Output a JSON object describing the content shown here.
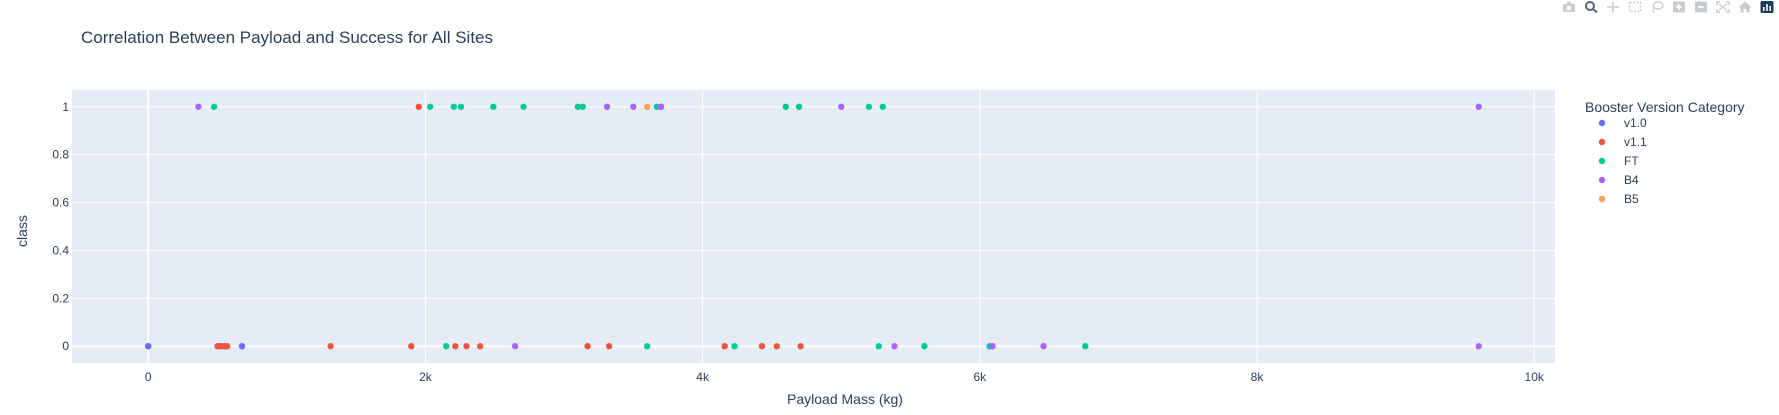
{
  "chart_data": {
    "type": "scatter",
    "title": "Correlation Between Payload and Success for All Sites",
    "xlabel": "Payload Mass (kg)",
    "ylabel": "class",
    "xlim": [
      -550,
      10150
    ],
    "ylim": [
      -0.07,
      1.07
    ],
    "x_ticks": [
      0,
      2000,
      4000,
      6000,
      8000,
      10000
    ],
    "x_tick_labels": [
      "0",
      "2k",
      "4k",
      "6k",
      "8k",
      "10k"
    ],
    "y_ticks": [
      0,
      0.2,
      0.4,
      0.6,
      0.8,
      1
    ],
    "y_tick_labels": [
      "0",
      "0.2",
      "0.4",
      "0.6",
      "0.8",
      "1"
    ],
    "grid": true,
    "legend_title": "Booster Version Category",
    "legend_position": "right",
    "series": [
      {
        "name": "v1.0",
        "color": "#636efa",
        "points": [
          [
            0,
            0
          ],
          [
            0,
            0
          ],
          [
            525,
            0
          ],
          [
            677,
            0
          ],
          [
            3700,
            1
          ]
        ]
      },
      {
        "name": "v1.1",
        "color": "#EF553B",
        "points": [
          [
            500,
            0
          ],
          [
            520,
            0
          ],
          [
            550,
            0
          ],
          [
            570,
            0
          ],
          [
            1316,
            0
          ],
          [
            1898,
            0
          ],
          [
            1952,
            1
          ],
          [
            2216,
            0
          ],
          [
            2296,
            0
          ],
          [
            2395,
            0
          ],
          [
            3170,
            0
          ],
          [
            3325,
            0
          ],
          [
            4159,
            0
          ],
          [
            4428,
            0
          ],
          [
            4535,
            0
          ],
          [
            4707,
            0
          ]
        ]
      },
      {
        "name": "FT",
        "color": "#00cc96",
        "points": [
          [
            475,
            1
          ],
          [
            2034,
            1
          ],
          [
            2150,
            0
          ],
          [
            2205,
            1
          ],
          [
            2257,
            1
          ],
          [
            2490,
            1
          ],
          [
            2708,
            1
          ],
          [
            3100,
            1
          ],
          [
            3136,
            1
          ],
          [
            3600,
            0
          ],
          [
            3670,
            1
          ],
          [
            4230,
            0
          ],
          [
            4600,
            1
          ],
          [
            4696,
            1
          ],
          [
            5200,
            1
          ],
          [
            5271,
            0
          ],
          [
            5300,
            1
          ],
          [
            5600,
            0
          ],
          [
            6070,
            0
          ],
          [
            6761,
            0
          ]
        ]
      },
      {
        "name": "B4",
        "color": "#ab63fa",
        "points": [
          [
            362,
            1
          ],
          [
            2647,
            0
          ],
          [
            3310,
            1
          ],
          [
            3500,
            1
          ],
          [
            3696,
            1
          ],
          [
            5000,
            1
          ],
          [
            5384,
            0
          ],
          [
            6092,
            0
          ],
          [
            6460,
            0
          ],
          [
            9600,
            1
          ],
          [
            9600,
            0
          ]
        ]
      },
      {
        "name": "B5",
        "color": "#FFA15A",
        "points": [
          [
            3600,
            1
          ]
        ]
      }
    ]
  },
  "modebar": {
    "icons": [
      "camera-icon",
      "zoom-icon",
      "pan-icon",
      "box-select-icon",
      "lasso-icon",
      "zoom-in-icon",
      "zoom-out-icon",
      "autoscale-icon",
      "home-icon",
      "plotly-logo-icon"
    ]
  }
}
